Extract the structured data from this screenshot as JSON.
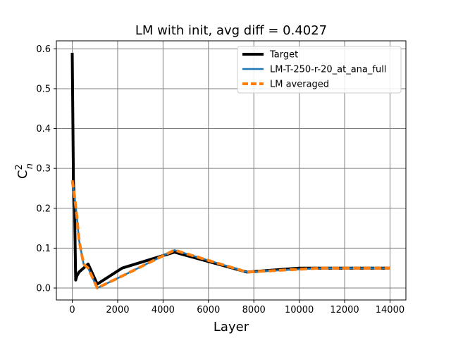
{
  "chart_data": {
    "type": "line",
    "title": "LM with init, avg diff = 0.4027",
    "xlabel": "Layer",
    "ylabel": "C_n^2",
    "xlim": [
      -700,
      14700
    ],
    "ylim": [
      -0.03,
      0.62
    ],
    "xticks": [
      0,
      2000,
      4000,
      6000,
      8000,
      10000,
      12000,
      14000
    ],
    "yticks": [
      0.0,
      0.1,
      0.2,
      0.3,
      0.4,
      0.5,
      0.6
    ],
    "xtick_labels": [
      "0",
      "2000",
      "4000",
      "6000",
      "8000",
      "10000",
      "12000",
      "14000"
    ],
    "ytick_labels": [
      "0.0",
      "0.1",
      "0.2",
      "0.3",
      "0.4",
      "0.5",
      "0.6"
    ],
    "grid": true,
    "legend_position": "top-right",
    "series": [
      {
        "name": "Target",
        "color": "#000000",
        "style": "solid",
        "x": [
          0,
          50,
          100,
          150,
          200,
          300,
          500,
          700,
          1100,
          2200,
          4500,
          7700,
          10000,
          11000,
          14000
        ],
        "y": [
          0.59,
          0.27,
          0.2,
          0.02,
          0.03,
          0.04,
          0.05,
          0.06,
          0.01,
          0.05,
          0.09,
          0.04,
          0.05,
          0.05,
          0.05
        ]
      },
      {
        "name": "LM-T-250-r-20_at_ana_full",
        "color": "#1f77b4",
        "style": "solid",
        "x": [
          0,
          100,
          200,
          300,
          500,
          700,
          1100,
          2200,
          4500,
          7700,
          10000,
          11000,
          14000
        ],
        "y": [
          0.27,
          0.23,
          0.18,
          0.12,
          0.06,
          0.05,
          0.0,
          0.03,
          0.095,
          0.04,
          0.047,
          0.05,
          0.05
        ]
      },
      {
        "name": "LM averaged",
        "color": "#ff7f0e",
        "style": "dashed",
        "x": [
          0,
          100,
          200,
          300,
          500,
          700,
          1100,
          2200,
          4500,
          7700,
          10000,
          11000,
          14000
        ],
        "y": [
          0.27,
          0.23,
          0.18,
          0.12,
          0.06,
          0.05,
          0.0,
          0.03,
          0.095,
          0.04,
          0.047,
          0.05,
          0.05
        ]
      }
    ]
  }
}
